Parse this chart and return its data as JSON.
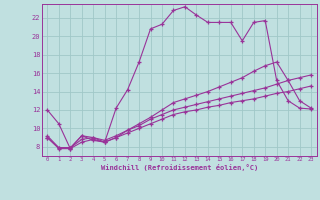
{
  "xlabel": "Windchill (Refroidissement éolien,°C)",
  "bg_color": "#c0e0e0",
  "grid_color": "#a0c8c8",
  "line_color": "#993399",
  "xlim": [
    -0.5,
    23.5
  ],
  "ylim": [
    7.0,
    23.5
  ],
  "xticks": [
    0,
    1,
    2,
    3,
    4,
    5,
    6,
    7,
    8,
    9,
    10,
    11,
    12,
    13,
    14,
    15,
    16,
    17,
    18,
    19,
    20,
    21,
    22,
    23
  ],
  "yticks": [
    8,
    10,
    12,
    14,
    16,
    18,
    20,
    22
  ],
  "curve1_x": [
    0,
    1,
    2,
    3,
    4,
    5,
    6,
    7,
    8,
    9,
    10,
    11,
    12,
    13,
    14,
    15,
    16,
    17,
    18,
    19,
    20,
    21,
    22,
    23
  ],
  "curve1_y": [
    12.0,
    10.5,
    7.8,
    9.2,
    8.7,
    8.5,
    12.2,
    14.2,
    17.2,
    20.8,
    21.3,
    22.8,
    23.2,
    22.3,
    21.5,
    21.5,
    21.5,
    19.5,
    21.5,
    21.7,
    15.2,
    13.0,
    12.2,
    12.1
  ],
  "curve2_x": [
    0,
    1,
    2,
    3,
    4,
    5,
    6,
    7,
    8,
    9,
    10,
    11,
    12,
    13,
    14,
    15,
    16,
    17,
    18,
    19,
    20,
    21,
    22,
    23
  ],
  "curve2_y": [
    9.0,
    7.8,
    7.8,
    8.5,
    8.8,
    8.5,
    9.0,
    9.5,
    10.0,
    10.5,
    11.0,
    11.5,
    11.8,
    12.0,
    12.3,
    12.5,
    12.8,
    13.0,
    13.2,
    13.5,
    13.8,
    14.0,
    14.3,
    14.6
  ],
  "curve3_x": [
    0,
    1,
    2,
    3,
    4,
    5,
    6,
    7,
    8,
    9,
    10,
    11,
    12,
    13,
    14,
    15,
    16,
    17,
    18,
    19,
    20,
    21,
    22,
    23
  ],
  "curve3_y": [
    9.2,
    7.9,
    7.9,
    8.8,
    9.0,
    8.7,
    9.2,
    9.8,
    10.3,
    11.0,
    11.5,
    12.0,
    12.3,
    12.6,
    12.9,
    13.2,
    13.5,
    13.8,
    14.1,
    14.4,
    14.8,
    15.2,
    15.5,
    15.8
  ],
  "curve4_x": [
    0,
    1,
    2,
    3,
    4,
    5,
    6,
    7,
    8,
    9,
    10,
    11,
    12,
    13,
    14,
    15,
    16,
    17,
    18,
    19,
    20,
    21,
    22,
    23
  ],
  "curve4_y": [
    9.0,
    7.9,
    7.9,
    9.2,
    9.0,
    8.5,
    9.0,
    9.8,
    10.5,
    11.2,
    12.0,
    12.8,
    13.2,
    13.6,
    14.0,
    14.5,
    15.0,
    15.5,
    16.2,
    16.8,
    17.2,
    15.2,
    13.0,
    12.2
  ]
}
